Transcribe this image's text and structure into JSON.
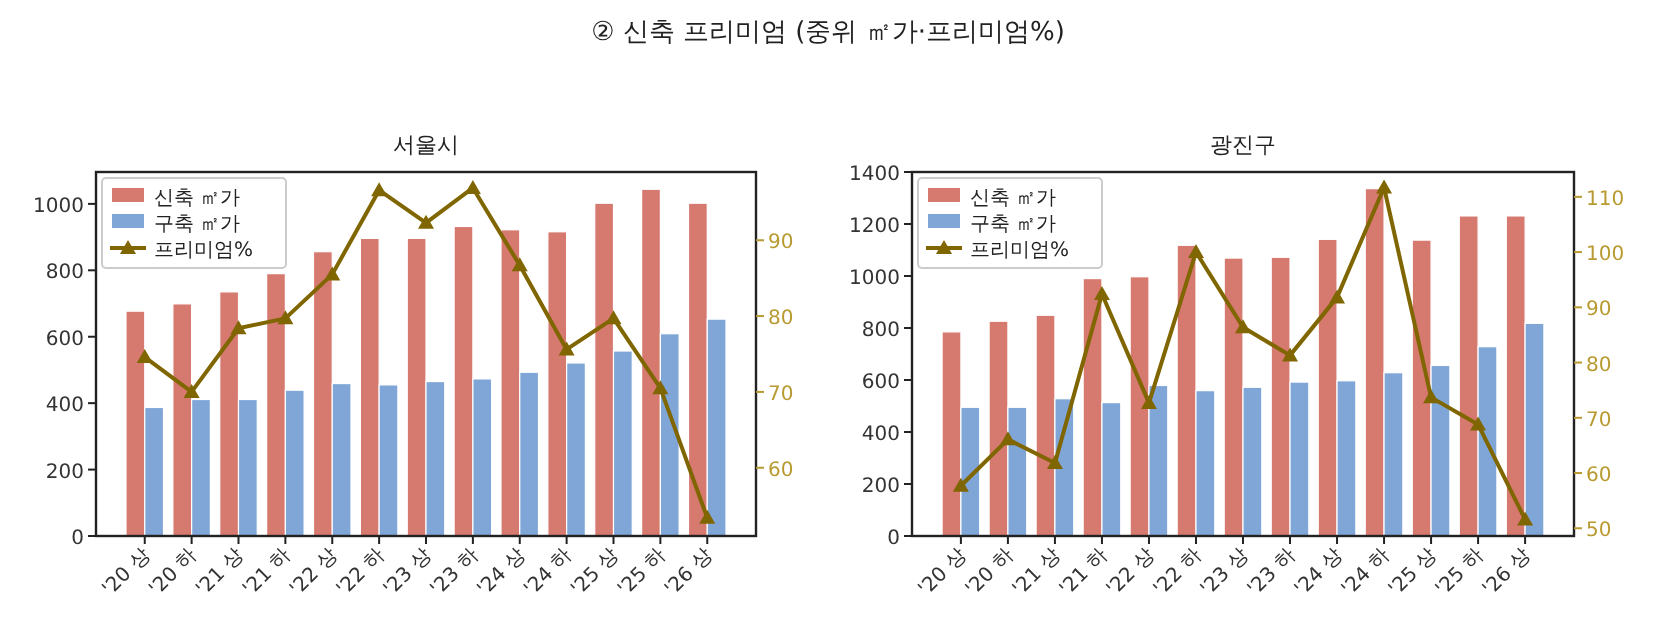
{
  "chart_data": [
    {
      "type": "bar",
      "title": "서울시",
      "annotations": [
        "② 신축 프리미엄 (중위 ㎡가·프리미엄%)"
      ],
      "categories": [
        "'20 상",
        "'20 하",
        "'21 상",
        "'21 하",
        "'22 상",
        "'22 하",
        "'23 상",
        "'23 하",
        "'24 상",
        "'24 하",
        "'25 상",
        "'25 하",
        "'26 상"
      ],
      "series": [
        {
          "name": "신축 ㎡가",
          "type": "bar",
          "color": "#d6796f",
          "values": [
            677,
            699,
            735,
            790,
            856,
            896,
            896,
            932,
            922,
            916,
            1002,
            1044,
            1002
          ]
        },
        {
          "name": "구축 ㎡가",
          "type": "bar",
          "color": "#7fa6d6",
          "values": [
            387,
            411,
            411,
            439,
            459,
            455,
            465,
            473,
            493,
            521,
            557,
            609,
            653
          ]
        },
        {
          "name": "프리미엄%",
          "type": "line",
          "axis": "y2",
          "color": "#806600",
          "marker": "triangle",
          "values": [
            74.6,
            70.0,
            78.4,
            79.7,
            85.5,
            96.6,
            92.3,
            96.9,
            86.7,
            75.6,
            79.7,
            70.5,
            53.4
          ]
        }
      ],
      "ylim": [
        0,
        1096
      ],
      "yticks": [
        0,
        200,
        400,
        600,
        800,
        1000
      ],
      "y2lim": [
        51,
        99
      ],
      "y2ticks": [
        60,
        70,
        80,
        90
      ],
      "legend": "top left",
      "grid": false
    },
    {
      "type": "bar",
      "title": "광진구",
      "categories": [
        "'20 상",
        "'20 하",
        "'21 상",
        "'21 하",
        "'22 상",
        "'22 하",
        "'23 상",
        "'23 하",
        "'24 상",
        "'24 하",
        "'25 상",
        "'25 하",
        "'26 상"
      ],
      "series": [
        {
          "name": "신축 ㎡가",
          "type": "bar",
          "color": "#d6796f",
          "values": [
            785,
            826,
            849,
            990,
            997,
            1118,
            1069,
            1072,
            1141,
            1336,
            1138,
            1231,
            1231
          ]
        },
        {
          "name": "구축 ㎡가",
          "type": "bar",
          "color": "#7fa6d6",
          "values": [
            495,
            495,
            528,
            513,
            579,
            559,
            572,
            592,
            597,
            628,
            656,
            728,
            818
          ]
        },
        {
          "name": "프리미엄%",
          "type": "line",
          "axis": "y2",
          "color": "#806600",
          "marker": "triangle",
          "values": [
            57.7,
            66.1,
            61.8,
            92.4,
            72.7,
            100.0,
            86.4,
            81.3,
            91.8,
            111.7,
            73.7,
            68.8,
            51.6
          ]
        }
      ],
      "ylim": [
        0,
        1400
      ],
      "yticks": [
        0,
        200,
        400,
        600,
        800,
        1000,
        1200,
        1400
      ],
      "y2lim": [
        48.6,
        114.5
      ],
      "y2ticks": [
        50,
        60,
        70,
        80,
        90,
        100,
        110
      ],
      "legend": "top left",
      "grid": false
    }
  ]
}
